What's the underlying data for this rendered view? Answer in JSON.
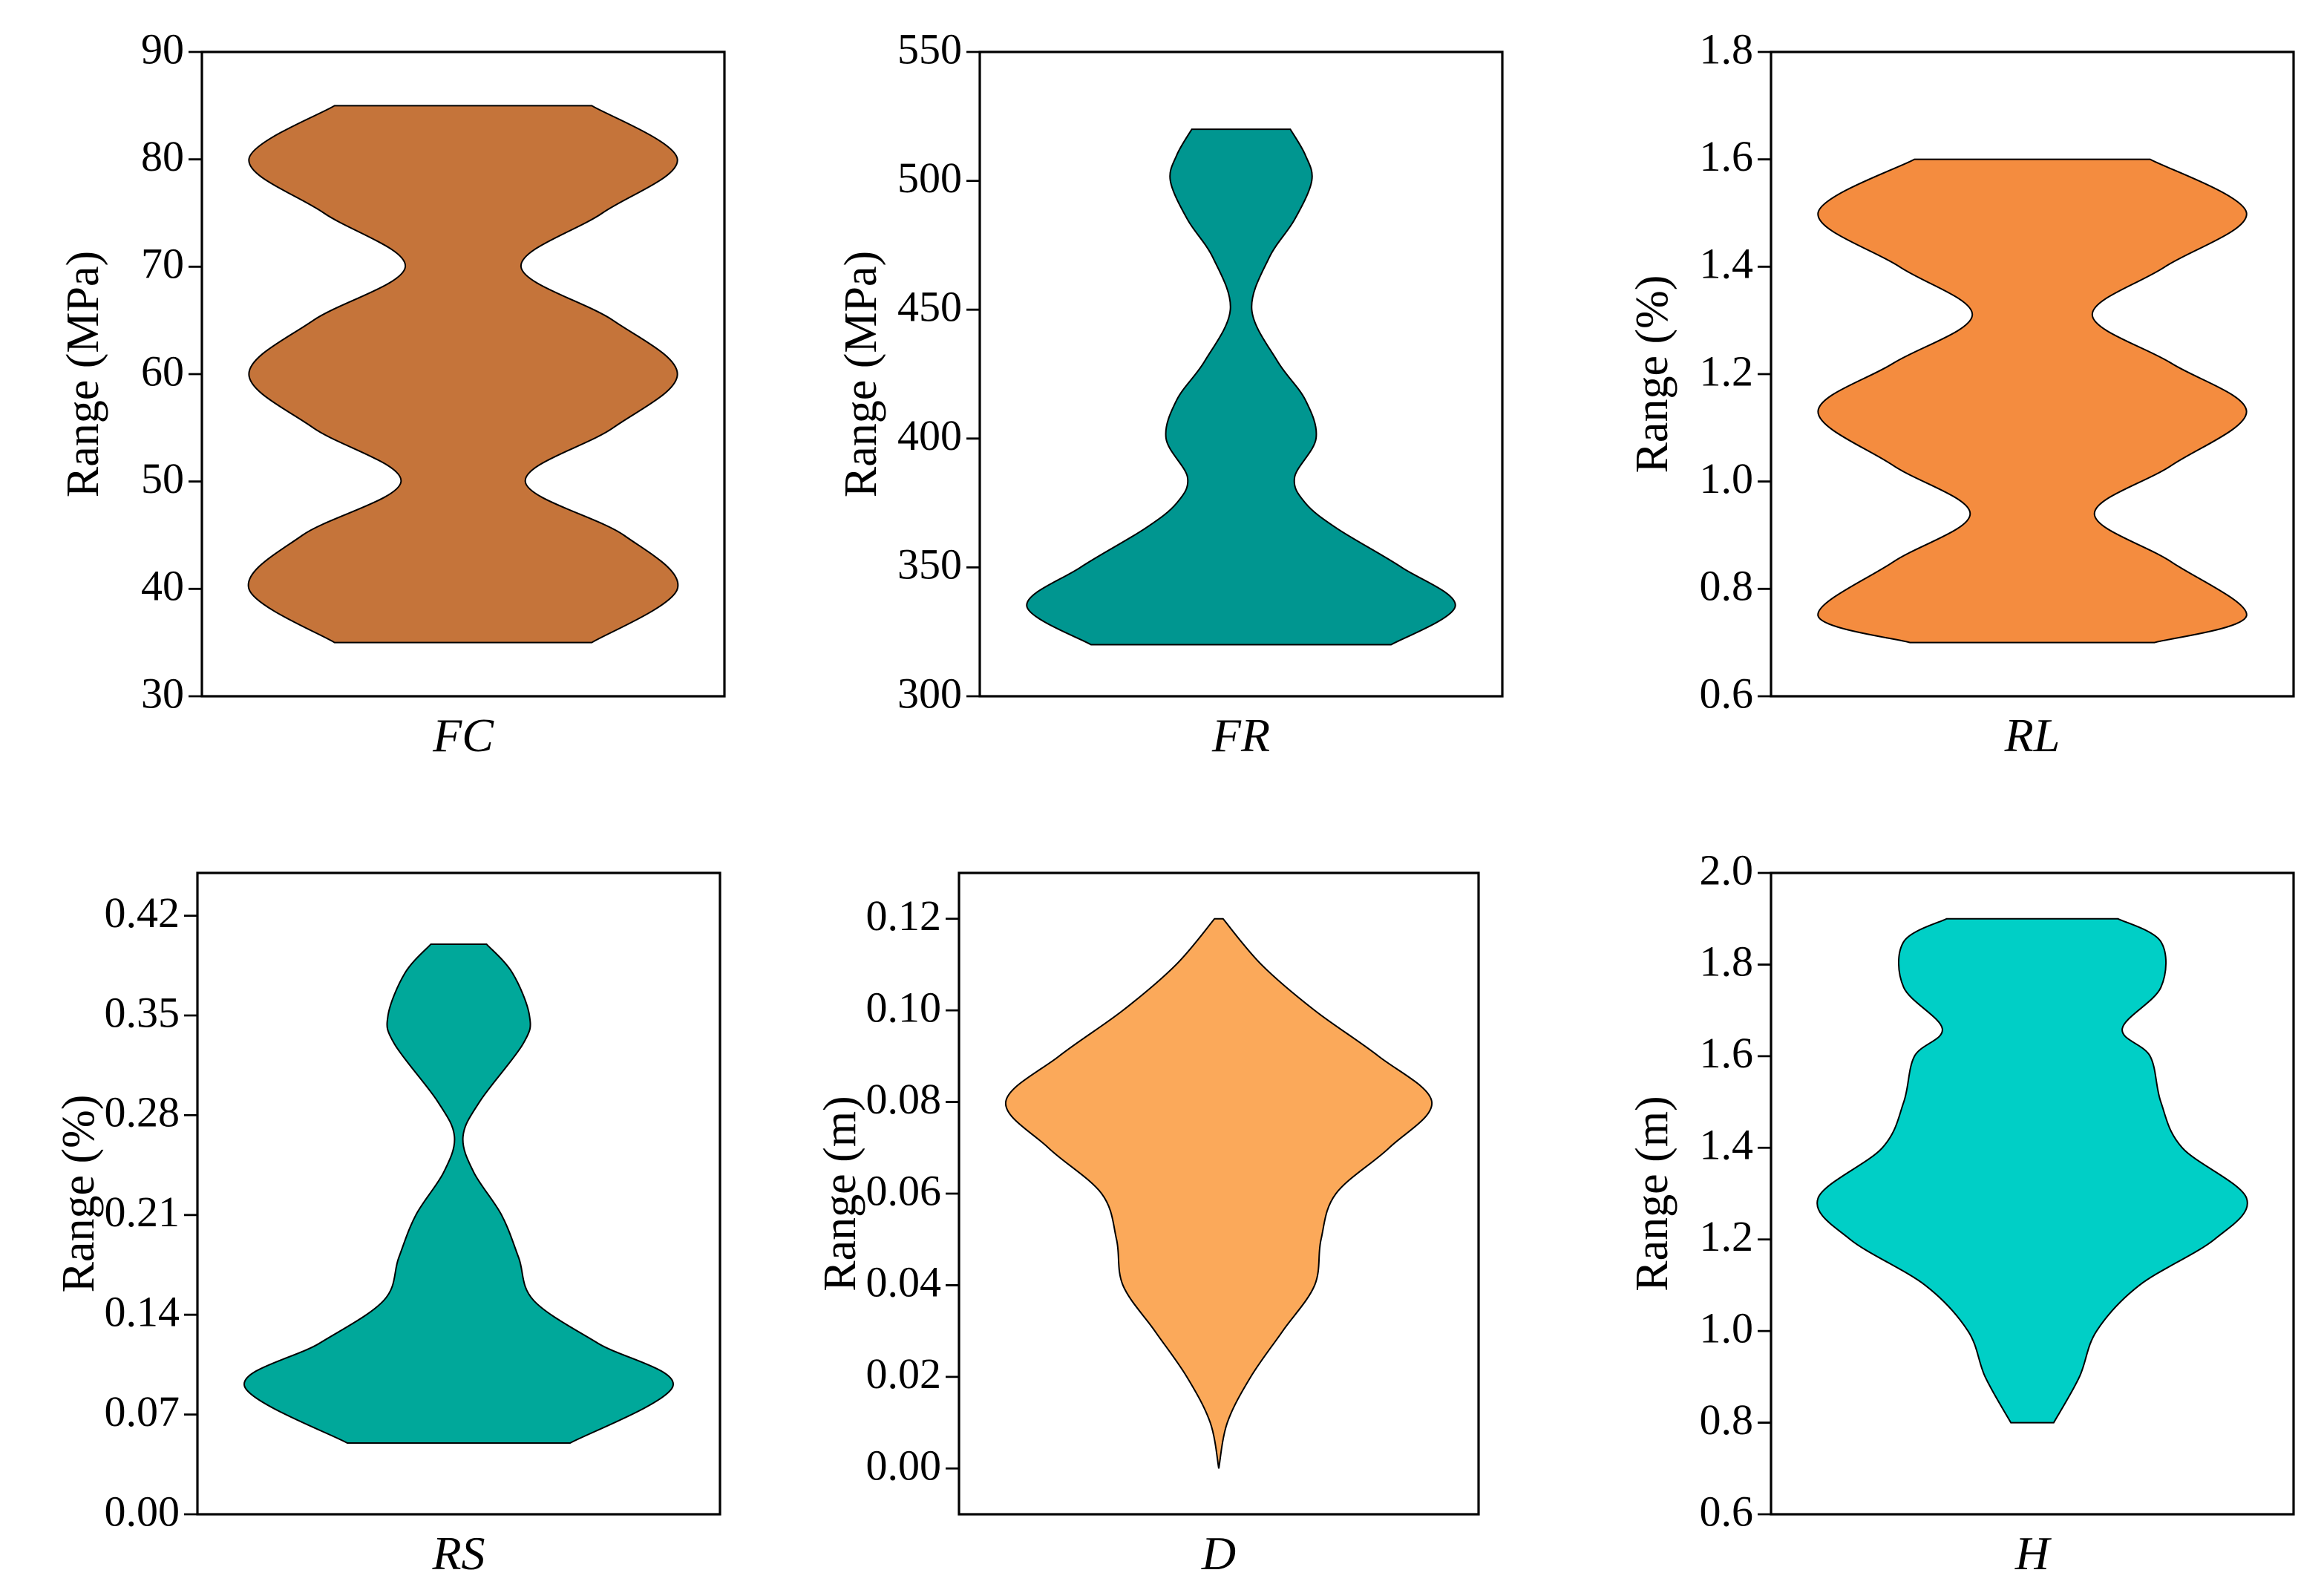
{
  "chart_data": [
    {
      "type": "violin",
      "category": "FC",
      "y_label": "Range (MPa)",
      "color": "#c5743a",
      "ylim": [
        30,
        90
      ],
      "yticks": [
        30,
        40,
        50,
        60,
        70,
        80,
        90
      ],
      "y": [
        35,
        40,
        45,
        50,
        55,
        60,
        65,
        70,
        75,
        80,
        85
      ],
      "density": [
        0.6,
        1.0,
        0.75,
        0.29,
        0.7,
        1.0,
        0.7,
        0.27,
        0.65,
        1.0,
        0.6
      ]
    },
    {
      "type": "violin",
      "category": "FR",
      "y_label": "Range (MPa)",
      "color": "#009690",
      "ylim": [
        300,
        550
      ],
      "yticks": [
        300,
        350,
        400,
        450,
        500,
        550
      ],
      "y": [
        320,
        335,
        350,
        365,
        375,
        385,
        400,
        415,
        430,
        450,
        470,
        485,
        500,
        510,
        520
      ],
      "density": [
        0.7,
        1.0,
        0.75,
        0.45,
        0.3,
        0.25,
        0.35,
        0.3,
        0.17,
        0.05,
        0.13,
        0.25,
        0.33,
        0.3,
        0.23
      ]
    },
    {
      "type": "violin",
      "category": "RL",
      "y_label": "Range (%)",
      "color": "#f48c3f",
      "ylim": [
        0.6,
        1.8
      ],
      "yticks": [
        0.6,
        0.8,
        {
          "value": 1,
          "label": "1.0"
        },
        1.2,
        1.4,
        1.6,
        1.8
      ],
      "y": [
        0.7,
        0.75,
        0.85,
        0.94,
        1.03,
        1.13,
        1.22,
        1.31,
        1.4,
        1.5,
        1.6
      ],
      "density": [
        0.57,
        1.0,
        0.65,
        0.29,
        0.65,
        1.0,
        0.65,
        0.28,
        0.62,
        1.0,
        0.55
      ]
    },
    {
      "type": "violin",
      "category": "RS",
      "y_label": "Range (%)",
      "color": "#00a89a",
      "ylim": [
        0,
        0.45
      ],
      "yticks": [
        {
          "value": 0,
          "label": "0.00"
        },
        0.07,
        0.14,
        0.21,
        0.28,
        0.35,
        0.42
      ],
      "y": [
        0.05,
        0.09,
        0.12,
        0.15,
        0.18,
        0.21,
        0.24,
        0.265,
        0.29,
        0.33,
        0.35,
        0.38,
        0.4
      ],
      "density": [
        0.52,
        1.0,
        0.65,
        0.35,
        0.28,
        0.2,
        0.07,
        0.02,
        0.1,
        0.3,
        0.33,
        0.25,
        0.13
      ]
    },
    {
      "type": "violin",
      "category": "D",
      "y_label": "Range (m)",
      "color": "#fba95a",
      "ylim": [
        -0.01,
        0.13
      ],
      "yticks": [
        {
          "value": 0,
          "label": "0.00"
        },
        0.02,
        0.04,
        0.06,
        0.08,
        {
          "value": 0.1,
          "label": "0.10"
        },
        0.12
      ],
      "y": [
        0,
        0.01,
        0.02,
        0.03,
        0.04,
        0.05,
        0.06,
        0.07,
        0.08,
        0.09,
        0.1,
        0.11,
        0.12
      ],
      "density": [
        0,
        0.04,
        0.15,
        0.3,
        0.45,
        0.48,
        0.55,
        0.8,
        1.0,
        0.75,
        0.45,
        0.2,
        0.02
      ]
    },
    {
      "type": "violin",
      "category": "H",
      "y_label": "Range (m)",
      "color": "#00cfc6",
      "ylim": [
        0.6,
        2.0
      ],
      "yticks": [
        0.6,
        0.8,
        {
          "value": 1,
          "label": "1.0"
        },
        1.2,
        1.4,
        1.6,
        1.8,
        {
          "value": 2,
          "label": "2.0"
        }
      ],
      "y": [
        0.8,
        0.9,
        1.0,
        1.1,
        1.2,
        1.29,
        1.4,
        1.5,
        1.6,
        1.66,
        1.75,
        1.85,
        1.9
      ],
      "density": [
        0.1,
        0.22,
        0.3,
        0.5,
        0.85,
        1.0,
        0.7,
        0.6,
        0.55,
        0.42,
        0.6,
        0.6,
        0.4
      ]
    }
  ]
}
